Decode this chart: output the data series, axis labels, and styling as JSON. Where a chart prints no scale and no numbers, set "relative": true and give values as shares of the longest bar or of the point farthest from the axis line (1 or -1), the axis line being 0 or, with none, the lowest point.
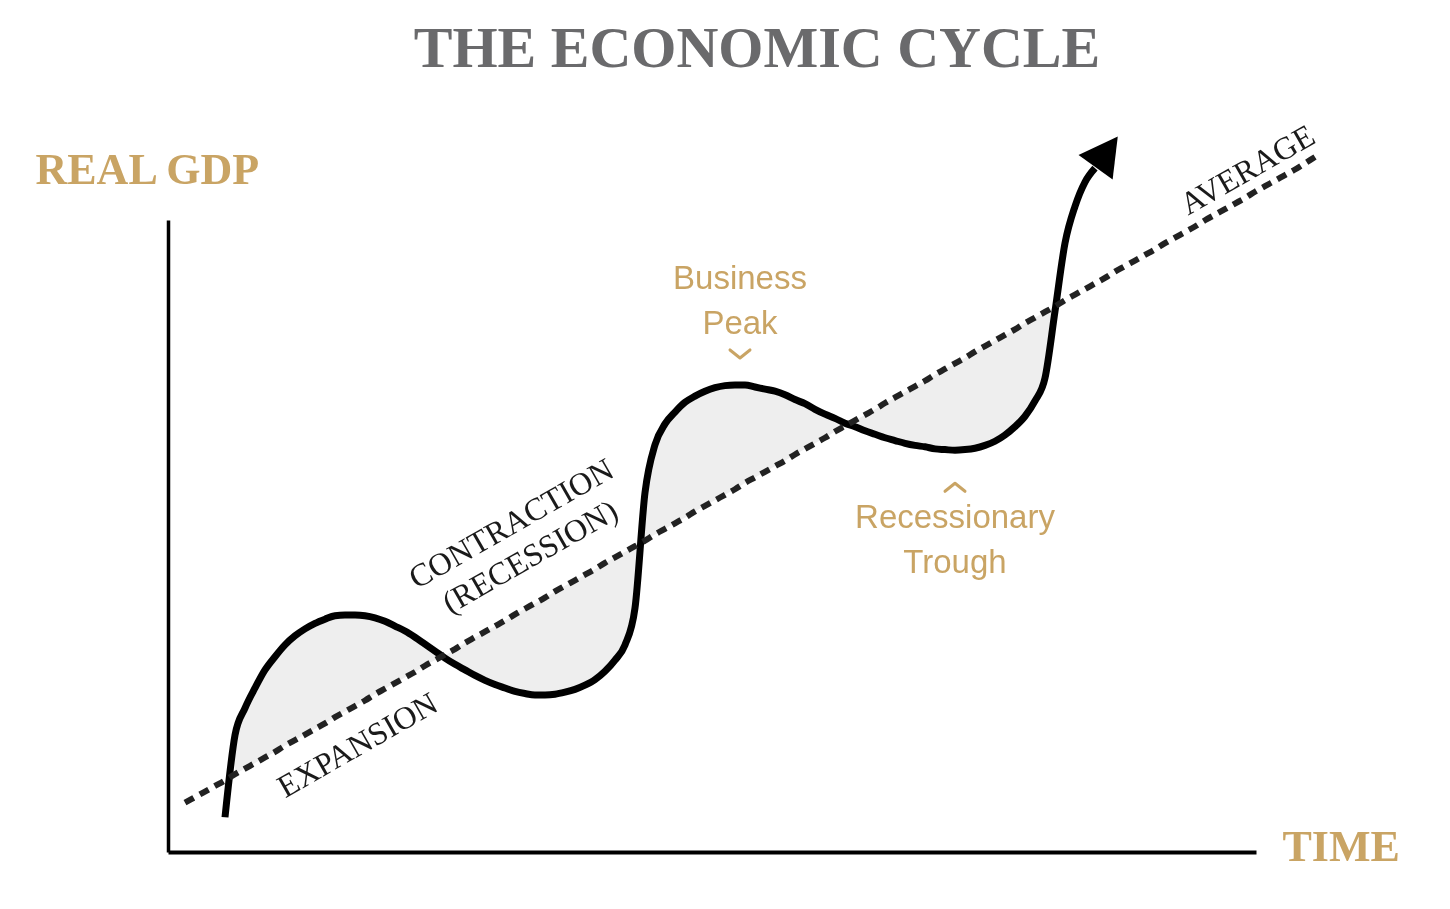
{
  "chart_data": {
    "type": "line",
    "title": "THE ECONOMIC CYCLE",
    "xlabel": "TIME",
    "ylabel": "REAL GDP",
    "relative": true,
    "categories": [
      null,
      null,
      null,
      null,
      null,
      null,
      null,
      null,
      null,
      null,
      null,
      null,
      null,
      null,
      null,
      null,
      null,
      null,
      null,
      null,
      null,
      null,
      null,
      null,
      null,
      null,
      null,
      null,
      null,
      null,
      null,
      null,
      null,
      null,
      null,
      null,
      null,
      null,
      null,
      null,
      null,
      null,
      null,
      null,
      null,
      null,
      null,
      null,
      null,
      null,
      null,
      null,
      null,
      null,
      null,
      null,
      null,
      null,
      null,
      null,
      null,
      null,
      null,
      null,
      null,
      null,
      null,
      null,
      null,
      null,
      null,
      null,
      null,
      null,
      null,
      null,
      null,
      null,
      null,
      null,
      null,
      null,
      null,
      null,
      null,
      null,
      null,
      null,
      null,
      null,
      null,
      null,
      null,
      null,
      null,
      null,
      null,
      null,
      null,
      null,
      null,
      null,
      null,
      null,
      null,
      null,
      null,
      null,
      null,
      null,
      null,
      null,
      null,
      null
    ],
    "series": [
      {
        "color": "#000000",
        "values": [
          null,
          null,
          null,
          null,
          0.05,
          0.168,
          0.207,
          0.236,
          0.262,
          0.281,
          0.298,
          0.311,
          0.321,
          0.329,
          0.335,
          0.34,
          0.341,
          0.341,
          0.34,
          0.337,
          0.332,
          0.325,
          0.318,
          0.309,
          0.299,
          0.289,
          0.279,
          0.27,
          0.262,
          0.254,
          0.247,
          0.241,
          0.236,
          0.231,
          0.228,
          0.226,
          0.226,
          0.227,
          0.23,
          0.234,
          0.24,
          0.248,
          0.26,
          0.276,
          0.298,
          0.351,
          0.517,
          0.586,
          0.616,
          0.633,
          0.647,
          0.656,
          0.663,
          0.668,
          0.671,
          0.672,
          0.672,
          0.669,
          0.666,
          0.663,
          0.658,
          0.651,
          0.645,
          0.637,
          0.63,
          0.624,
          0.617,
          0.612,
          0.606,
          0.601,
          0.596,
          0.592,
          0.588,
          0.585,
          0.583,
          0.58,
          0.579,
          0.578,
          0.579,
          0.581,
          0.585,
          0.591,
          0.6,
          0.612,
          0.627,
          0.649,
          0.682,
          0.778,
          0.876,
          0.929,
          0.964,
          0.984,
          null,
          null,
          null,
          null,
          null,
          null,
          null,
          null,
          null,
          null,
          null,
          null,
          null,
          null,
          null,
          null,
          null,
          null,
          null,
          null,
          null,
          null
        ],
        "lower": [
          null,
          null,
          null,
          null,
          null,
          0.112,
          0.12,
          0.128,
          0.136,
          0.144,
          0.153,
          0.161,
          0.169,
          0.177,
          0.185,
          0.194,
          0.202,
          0.21,
          0.218,
          0.227,
          0.235,
          0.243,
          0.251,
          0.259,
          0.268,
          0.276,
          0.279,
          0.27,
          0.262,
          0.254,
          0.247,
          0.241,
          0.236,
          0.231,
          0.228,
          0.226,
          0.226,
          0.227,
          0.23,
          0.234,
          0.24,
          0.248,
          0.26,
          0.276,
          0.298,
          0.351,
          0.448,
          0.457,
          0.465,
          0.473,
          0.481,
          0.49,
          0.498,
          0.506,
          0.514,
          0.522,
          0.531,
          0.539,
          0.547,
          0.555,
          0.563,
          0.572,
          0.58,
          0.588,
          0.596,
          0.605,
          0.613,
          0.612,
          0.606,
          0.601,
          0.596,
          0.592,
          0.588,
          0.585,
          0.583,
          0.58,
          0.579,
          0.578,
          0.579,
          0.581,
          0.585,
          0.591,
          0.6,
          0.612,
          0.627,
          0.649,
          0.682,
          0.778,
          null,
          null,
          null,
          null,
          null,
          null,
          null,
          null,
          null,
          null,
          null,
          null,
          null,
          null,
          null,
          null,
          null,
          null,
          null,
          null,
          null,
          null,
          null,
          null,
          null,
          null
        ],
        "upper": [
          null,
          null,
          null,
          null,
          null,
          0.168,
          0.207,
          0.236,
          0.262,
          0.281,
          0.298,
          0.311,
          0.321,
          0.329,
          0.335,
          0.34,
          0.341,
          0.341,
          0.34,
          0.337,
          0.332,
          0.325,
          0.318,
          0.309,
          0.299,
          0.289,
          0.284,
          0.292,
          0.301,
          0.309,
          0.317,
          0.325,
          0.333,
          0.342,
          0.35,
          0.358,
          0.366,
          0.375,
          0.383,
          0.391,
          0.399,
          0.407,
          0.416,
          0.424,
          0.432,
          0.44,
          0.517,
          0.586,
          0.616,
          0.633,
          0.647,
          0.656,
          0.663,
          0.668,
          0.671,
          0.672,
          0.672,
          0.669,
          0.666,
          0.663,
          0.658,
          0.651,
          0.645,
          0.637,
          0.63,
          0.624,
          0.617,
          0.621,
          0.629,
          0.637,
          0.646,
          0.654,
          0.662,
          0.67,
          0.678,
          0.687,
          0.695,
          0.703,
          0.711,
          0.72,
          0.728,
          0.736,
          0.744,
          0.752,
          0.761,
          0.769,
          0.777,
          0.785,
          null,
          null,
          null,
          null,
          null,
          null,
          null,
          null,
          null,
          null,
          null,
          null,
          null,
          null,
          null,
          null,
          null,
          null,
          null,
          null,
          null,
          null,
          null,
          null,
          null,
          null
        ]
      },
      {
        "name": "AVERAGE",
        "color": "#222222",
        "line_style": "dashed",
        "values": [
          0.071,
          0.079,
          0.087,
          0.095,
          0.103,
          0.112,
          0.12,
          0.128,
          0.136,
          0.144,
          0.153,
          0.161,
          0.169,
          0.177,
          0.185,
          0.194,
          0.202,
          0.21,
          0.218,
          0.227,
          0.235,
          0.243,
          0.251,
          0.259,
          0.268,
          0.276,
          0.284,
          0.292,
          0.301,
          0.309,
          0.317,
          0.325,
          0.333,
          0.342,
          0.35,
          0.358,
          0.366,
          0.375,
          0.383,
          0.391,
          0.399,
          0.407,
          0.416,
          0.424,
          0.432,
          0.44,
          0.448,
          0.457,
          0.465,
          0.473,
          0.481,
          0.49,
          0.498,
          0.506,
          0.514,
          0.522,
          0.531,
          0.539,
          0.547,
          0.555,
          0.563,
          0.572,
          0.58,
          0.588,
          0.596,
          0.605,
          0.613,
          0.621,
          0.629,
          0.637,
          0.646,
          0.654,
          0.662,
          0.67,
          0.678,
          0.687,
          0.695,
          0.703,
          0.711,
          0.72,
          0.728,
          0.736,
          0.744,
          0.752,
          0.761,
          0.769,
          0.777,
          0.785,
          0.794,
          0.802,
          0.81,
          0.818,
          0.826,
          0.835,
          0.843,
          0.851,
          0.859,
          0.867,
          0.876,
          0.884,
          0.892,
          0.9,
          0.909,
          0.917,
          0.925,
          0.933,
          0.941,
          0.95,
          0.958,
          0.966,
          0.974,
          0.982,
          0.991,
          1
        ]
      }
    ],
    "annotations": [
      "EXPANSION",
      "CONTRACTION (RECESSION)",
      {
        "text": "Business Peak",
        "y": 0.672
      },
      {
        "text": "Recessionary Trough",
        "y": 0.578
      }
    ]
  }
}
